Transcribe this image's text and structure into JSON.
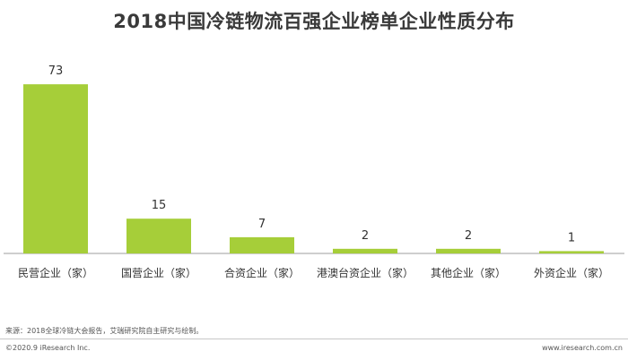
{
  "title": "2018中国冷链物流百强企业榜单企业性质分布",
  "colors": {
    "bar": "#a6ce39",
    "axis": "#9e9e9e",
    "text": "#333333"
  },
  "chart_data": {
    "type": "bar",
    "title": "2018中国冷链物流百强企业榜单企业性质分布",
    "categories": [
      "民营企业（家）",
      "国营企业（家）",
      "合资企业（家）",
      "港澳台资企业（家）",
      "其他企业（家）",
      "外资企业（家）"
    ],
    "values": [
      73,
      15,
      7,
      2,
      2,
      1
    ],
    "ylim": [
      0,
      80
    ],
    "grid": false,
    "legend": "none",
    "data_labels": true
  },
  "footer": {
    "source": "来源：2018全球冷链大会报告，艾瑞研究院自主研究与绘制。",
    "copyright": "©2020.9 iResearch Inc.",
    "website": "www.iresearch.com.cn"
  }
}
